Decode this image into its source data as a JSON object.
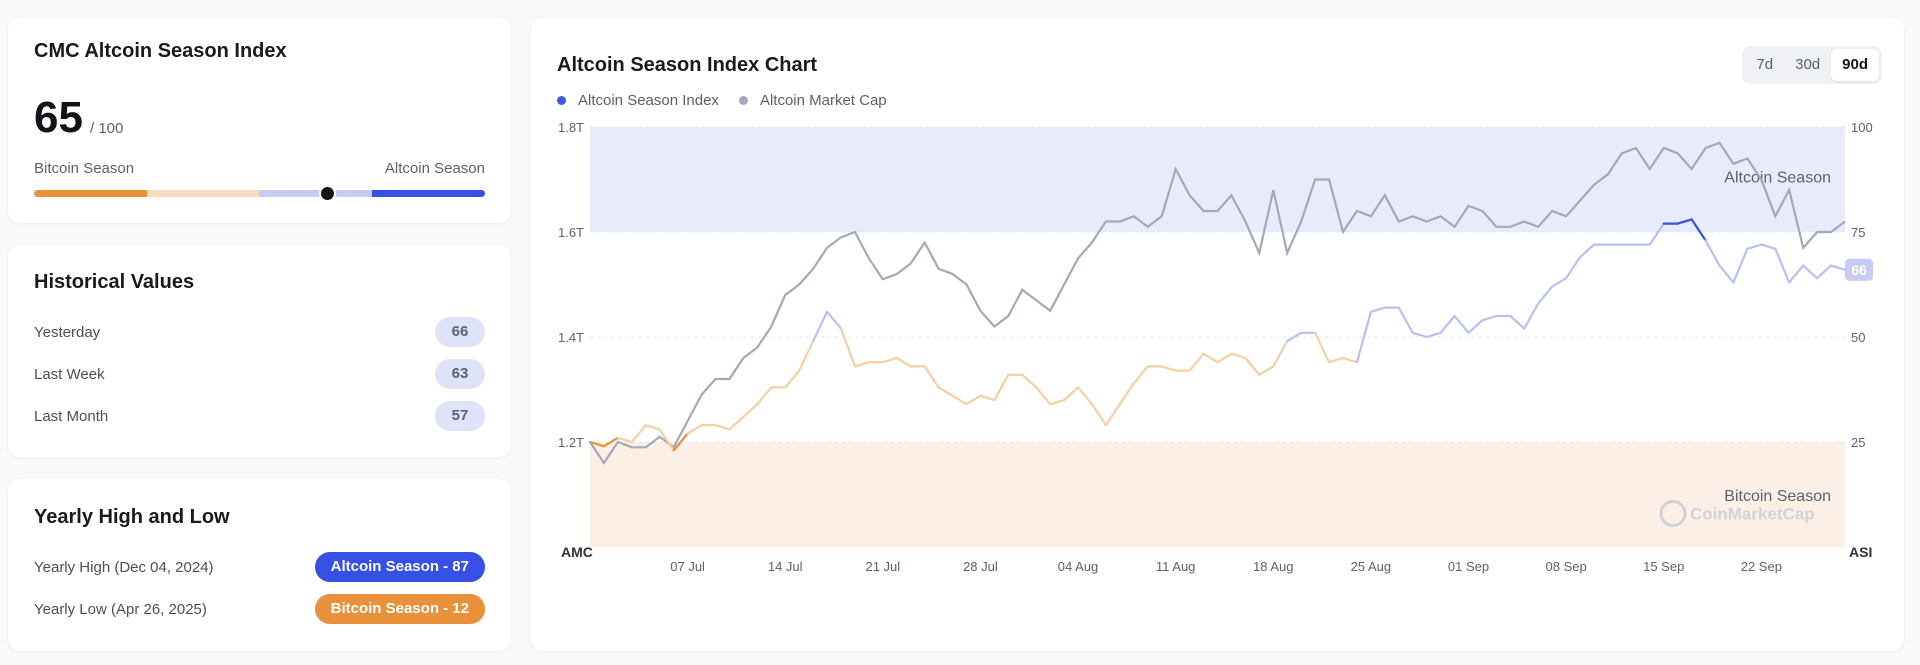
{
  "index_card": {
    "title": "CMC Altcoin Season Index",
    "value": "65",
    "max_label": "/ 100",
    "left_label": "Bitcoin Season",
    "right_label": "Altcoin Season",
    "gauge_value": 65
  },
  "historical": {
    "title": "Historical Values",
    "rows": [
      {
        "label": "Yesterday",
        "value": "66"
      },
      {
        "label": "Last Week",
        "value": "63"
      },
      {
        "label": "Last Month",
        "value": "57"
      }
    ]
  },
  "yearly": {
    "title": "Yearly High and Low",
    "high_label": "Yearly High (Dec 04, 2024)",
    "high_badge": "Altcoin Season - 87",
    "low_label": "Yearly Low (Apr 26, 2025)",
    "low_badge": "Bitcoin Season - 12"
  },
  "chart_card": {
    "title": "Altcoin Season Index Chart",
    "tabs": [
      "7d",
      "30d",
      "90d"
    ],
    "active_tab": "90d",
    "legend": [
      {
        "label": "Altcoin Season Index",
        "color": "#3b5bdb"
      },
      {
        "label": "Altcoin Market Cap",
        "color": "#a3a9b8"
      }
    ],
    "watermark": "CoinMarketCap"
  },
  "colors": {
    "bitcoin": "#e8903a",
    "bitcoin_light": "#f4dcc0",
    "altcoin": "#3650e6",
    "altcoin_light": "#c6ccf4",
    "neutral_badge": "#dfe3f7"
  },
  "chart_data": {
    "type": "line",
    "title": "Altcoin Season Index Chart",
    "left_axis_title": "AMC",
    "right_axis_title": "ASI",
    "left_ticks": [
      "1.8T",
      "1.6T",
      "1.4T",
      "1.2T"
    ],
    "left_tick_values": [
      1.8,
      1.6,
      1.4,
      1.2
    ],
    "right_ticks": [
      "100",
      "75",
      "50",
      "25"
    ],
    "right_tick_values": [
      100,
      75,
      50,
      25
    ],
    "left_range": [
      1.0,
      1.8
    ],
    "right_range": [
      0,
      100
    ],
    "x_range": [
      0,
      90
    ],
    "x_labels": [
      "07 Jul",
      "14 Jul",
      "21 Jul",
      "28 Jul",
      "04 Aug",
      "11 Aug",
      "18 Aug",
      "25 Aug",
      "01 Sep",
      "08 Sep",
      "15 Sep",
      "22 Sep"
    ],
    "x_label_days": [
      7,
      14,
      21,
      28,
      35,
      42,
      49,
      56,
      63,
      70,
      77,
      84
    ],
    "zones": [
      {
        "name": "Altcoin Season",
        "from": 75,
        "to": 100
      },
      {
        "name": "Bitcoin Season",
        "from": 0,
        "to": 25
      }
    ],
    "current_label": "66",
    "series": [
      {
        "name": "Altcoin Market Cap",
        "axis": "left",
        "x": [
          0,
          1,
          2,
          3,
          4,
          5,
          6,
          7,
          8,
          9,
          10,
          11,
          12,
          13,
          14,
          15,
          16,
          17,
          18,
          19,
          20,
          21,
          22,
          23,
          24,
          25,
          26,
          27,
          28,
          29,
          30,
          31,
          32,
          33,
          34,
          35,
          36,
          37,
          38,
          39,
          40,
          41,
          42,
          43,
          44,
          45,
          46,
          47,
          48,
          49,
          50,
          51,
          52,
          53,
          54,
          55,
          56,
          57,
          58,
          59,
          60,
          61,
          62,
          63,
          64,
          65,
          66,
          67,
          68,
          69,
          70,
          71,
          72,
          73,
          74,
          75,
          76,
          77,
          78,
          79,
          80,
          81,
          82,
          83,
          84,
          85,
          86,
          87,
          88,
          89,
          90
        ],
        "values": [
          1.2,
          1.16,
          1.2,
          1.19,
          1.19,
          1.21,
          1.19,
          1.24,
          1.29,
          1.32,
          1.32,
          1.36,
          1.38,
          1.42,
          1.48,
          1.5,
          1.53,
          1.57,
          1.59,
          1.6,
          1.55,
          1.51,
          1.52,
          1.54,
          1.58,
          1.53,
          1.52,
          1.5,
          1.45,
          1.42,
          1.44,
          1.49,
          1.47,
          1.45,
          1.5,
          1.55,
          1.58,
          1.62,
          1.62,
          1.63,
          1.61,
          1.63,
          1.72,
          1.67,
          1.64,
          1.64,
          1.67,
          1.62,
          1.56,
          1.68,
          1.56,
          1.62,
          1.7,
          1.7,
          1.6,
          1.64,
          1.63,
          1.67,
          1.62,
          1.63,
          1.62,
          1.63,
          1.61,
          1.65,
          1.64,
          1.61,
          1.61,
          1.62,
          1.61,
          1.64,
          1.63,
          1.66,
          1.69,
          1.71,
          1.75,
          1.76,
          1.72,
          1.76,
          1.75,
          1.72,
          1.76,
          1.77,
          1.73,
          1.74,
          1.7,
          1.63,
          1.68,
          1.57,
          1.6,
          1.6,
          1.62
        ]
      },
      {
        "name": "Altcoin Season Index",
        "axis": "right",
        "x": [
          0,
          1,
          2,
          3,
          4,
          5,
          6,
          7,
          8,
          9,
          10,
          11,
          12,
          13,
          14,
          15,
          16,
          17,
          18,
          19,
          20,
          21,
          22,
          23,
          24,
          25,
          26,
          27,
          28,
          29,
          30,
          31,
          32,
          33,
          34,
          35,
          36,
          37,
          38,
          39,
          40,
          41,
          42,
          43,
          44,
          45,
          46,
          47,
          48,
          49,
          50,
          51,
          52,
          53,
          54,
          55,
          56,
          57,
          58,
          59,
          60,
          61,
          62,
          63,
          64,
          65,
          66,
          67,
          68,
          69,
          70,
          71,
          72,
          73,
          74,
          75,
          76,
          77,
          78,
          79,
          80,
          81,
          82,
          83,
          84,
          85,
          86,
          87,
          88,
          89,
          90
        ],
        "values": [
          25,
          24,
          26,
          25,
          29,
          28,
          23,
          27,
          29,
          29,
          28,
          31,
          34,
          38,
          38,
          42,
          49,
          56,
          52,
          43,
          44,
          44,
          45,
          43,
          43,
          38,
          36,
          34,
          36,
          35,
          41,
          41,
          38,
          34,
          35,
          38,
          34,
          29,
          34,
          39,
          43,
          43,
          42,
          42,
          46,
          44,
          46,
          45,
          41,
          43,
          49,
          51,
          51,
          44,
          45,
          44,
          56,
          57,
          57,
          51,
          50,
          51,
          55,
          51,
          54,
          55,
          55,
          52,
          58,
          62,
          64,
          69,
          72,
          72,
          72,
          72,
          72,
          77,
          77,
          78,
          73,
          67,
          63,
          71,
          72,
          71,
          63,
          67,
          64,
          67,
          66
        ]
      }
    ]
  }
}
